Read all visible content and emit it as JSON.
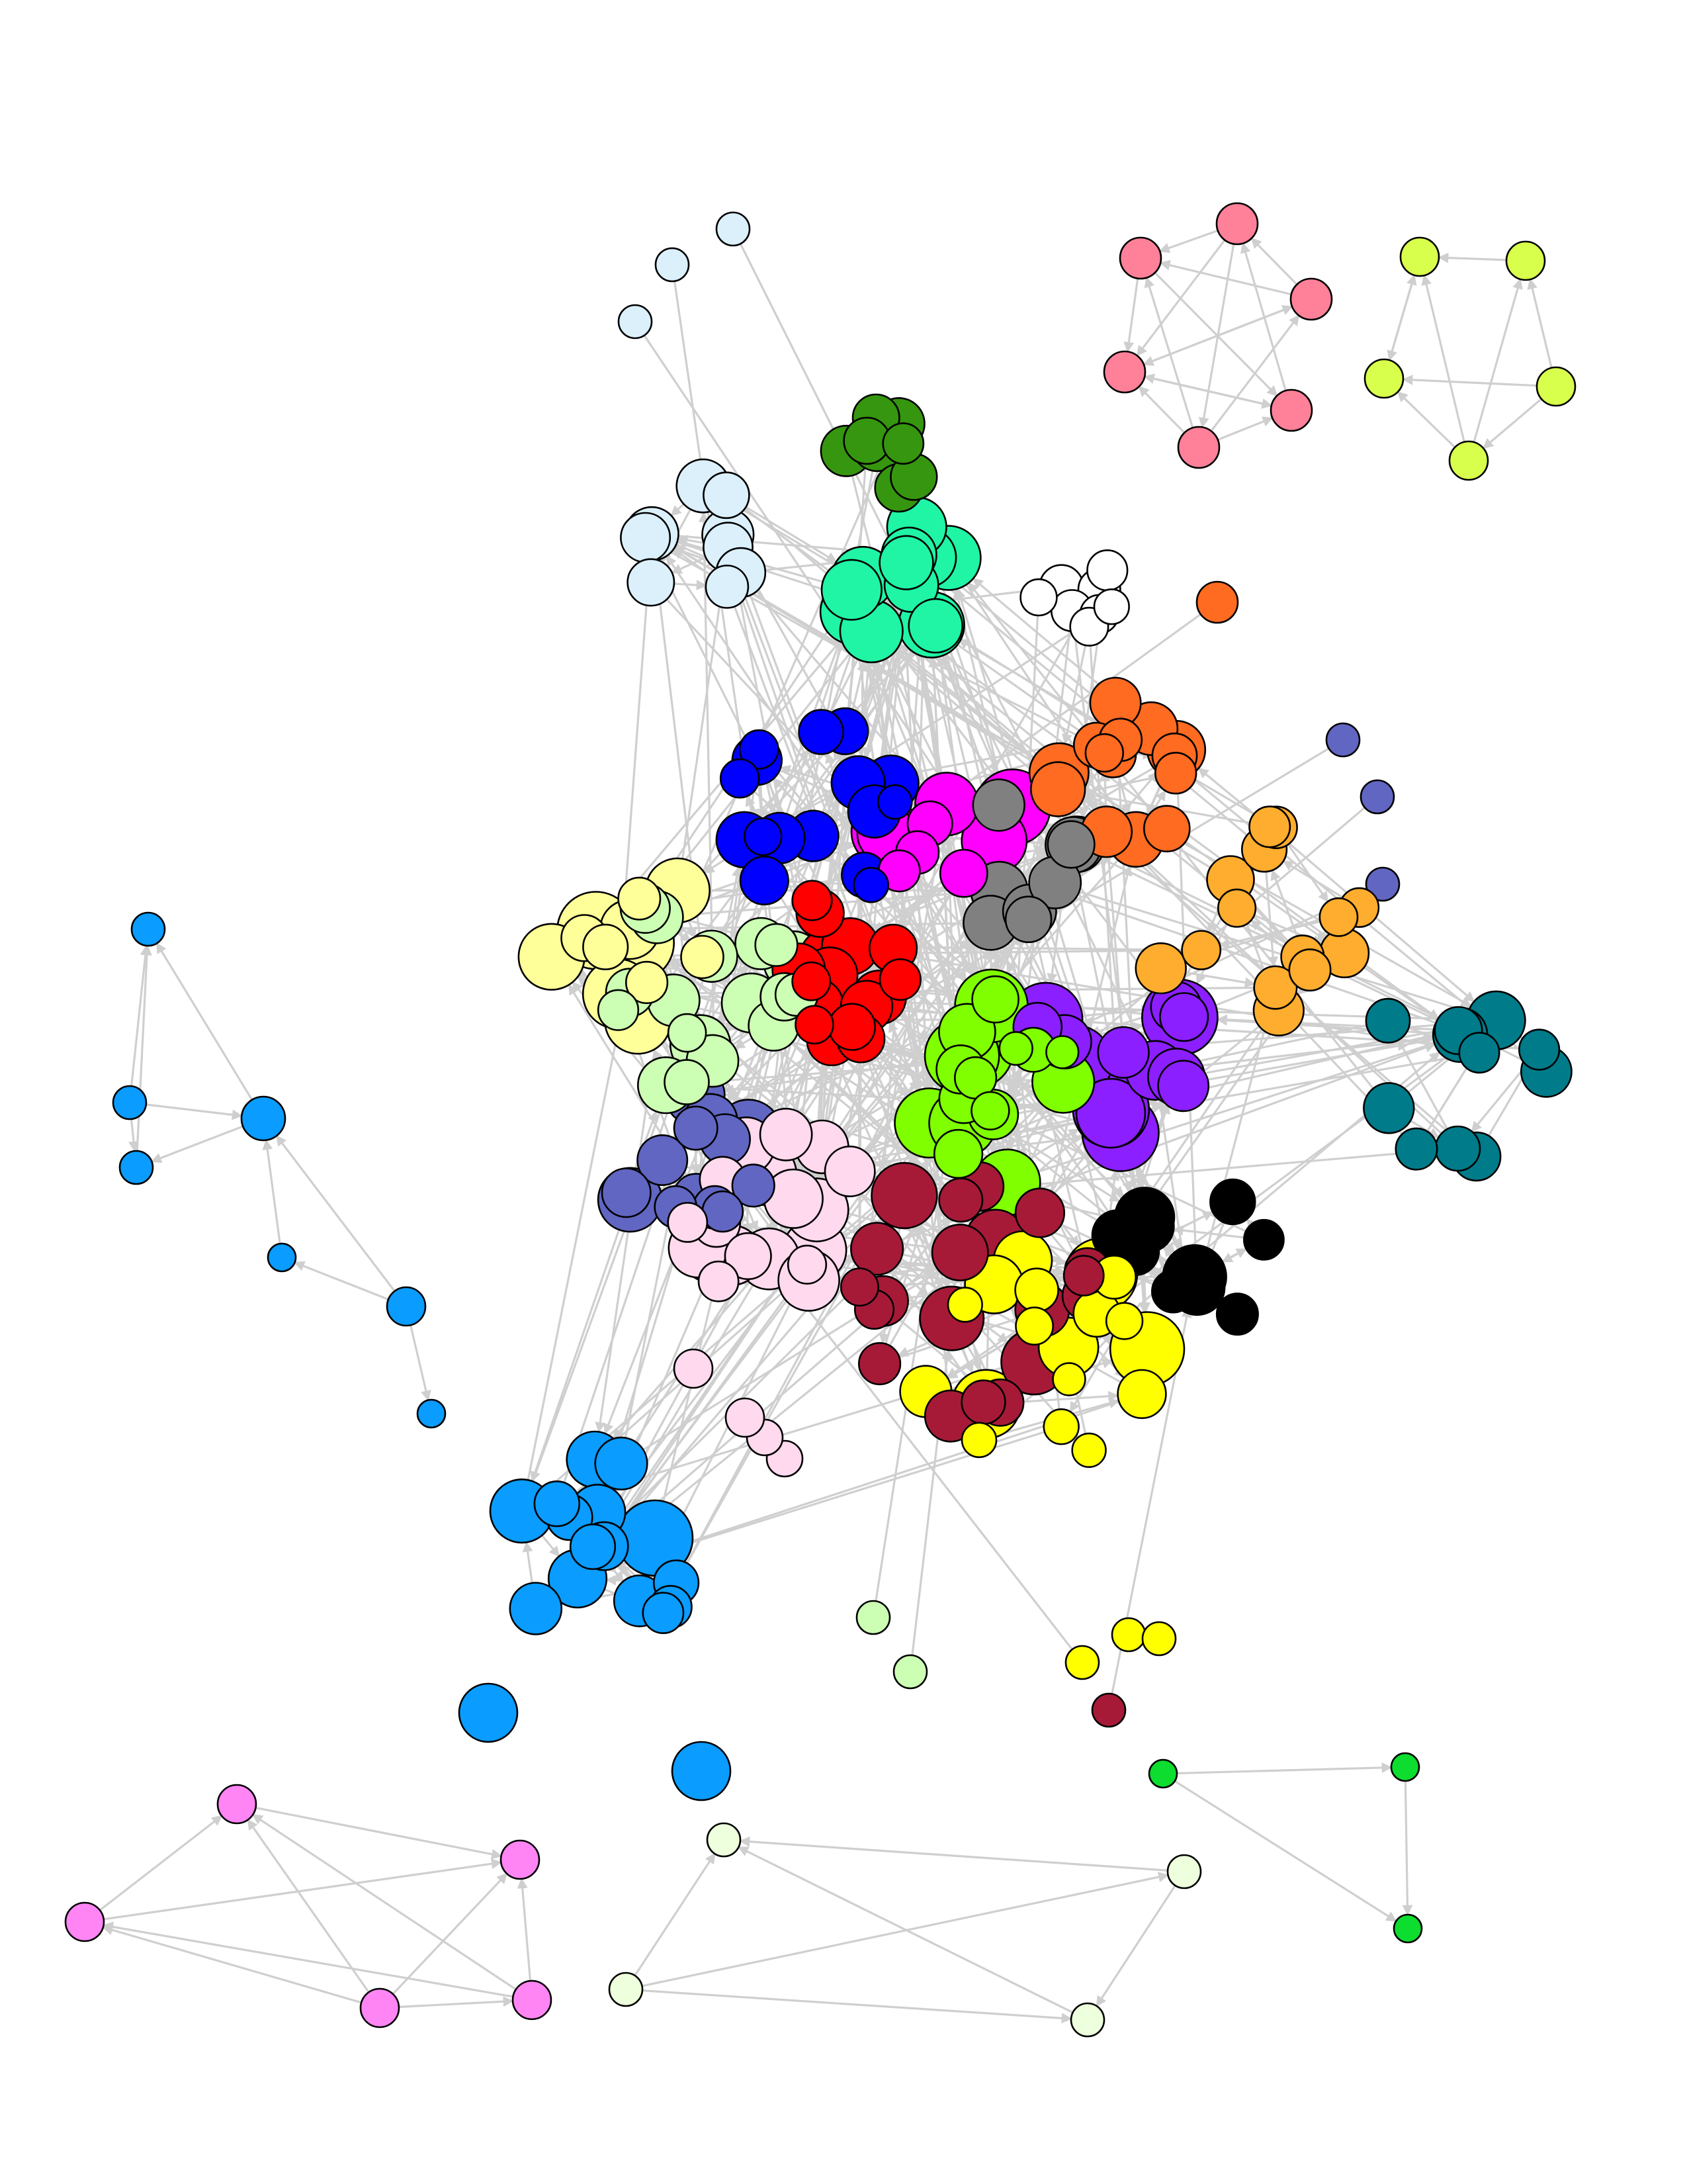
{
  "diagram": {
    "type": "network-graph",
    "directed": true,
    "edge_color": "#cfcfcf",
    "node_outline_color": "#000000",
    "background": "#ffffff",
    "communities": [
      {
        "name": "pink-pentagon-cluster",
        "color": "#ff8099"
      },
      {
        "name": "lime-pentagon-cluster",
        "color": "#d9ff4d"
      },
      {
        "name": "lightblue-cluster",
        "color": "#dbf0fb"
      },
      {
        "name": "darkgreen-cluster",
        "color": "#36960f"
      },
      {
        "name": "blue-cluster",
        "color": "#0000ff"
      },
      {
        "name": "aquamarine-cluster",
        "color": "#1ff5a5"
      },
      {
        "name": "white-cluster",
        "color": "#ffffff"
      },
      {
        "name": "orange-cluster",
        "color": "#ff6b21"
      },
      {
        "name": "light-orange-cluster",
        "color": "#ffad2e"
      },
      {
        "name": "magenta-cluster",
        "color": "#ff00ff"
      },
      {
        "name": "gray-cluster",
        "color": "#808080"
      },
      {
        "name": "chartreuse-cluster",
        "color": "#80ff00"
      },
      {
        "name": "purple-cluster",
        "color": "#8c1fff"
      },
      {
        "name": "slateblue-cluster",
        "color": "#6166c2"
      },
      {
        "name": "teal-cluster",
        "color": "#007b8a"
      },
      {
        "name": "black-cluster",
        "color": "#000000"
      },
      {
        "name": "maroon-cluster",
        "color": "#a61a38"
      },
      {
        "name": "red-cluster",
        "color": "#ff0000"
      },
      {
        "name": "pale-yellow-cluster",
        "color": "#ffff99"
      },
      {
        "name": "pale-green-cluster",
        "color": "#ccffb3"
      },
      {
        "name": "pale-pink-cluster",
        "color": "#ffd9ed"
      },
      {
        "name": "yellow-cluster",
        "color": "#ffff00"
      },
      {
        "name": "azure-cluster",
        "color": "#0a9cff"
      },
      {
        "name": "violet-cluster",
        "color": "#ff85f5"
      },
      {
        "name": "honeydew-cluster",
        "color": "#eeffdd"
      },
      {
        "name": "green-cluster",
        "color": "#0ddd2e"
      }
    ]
  }
}
